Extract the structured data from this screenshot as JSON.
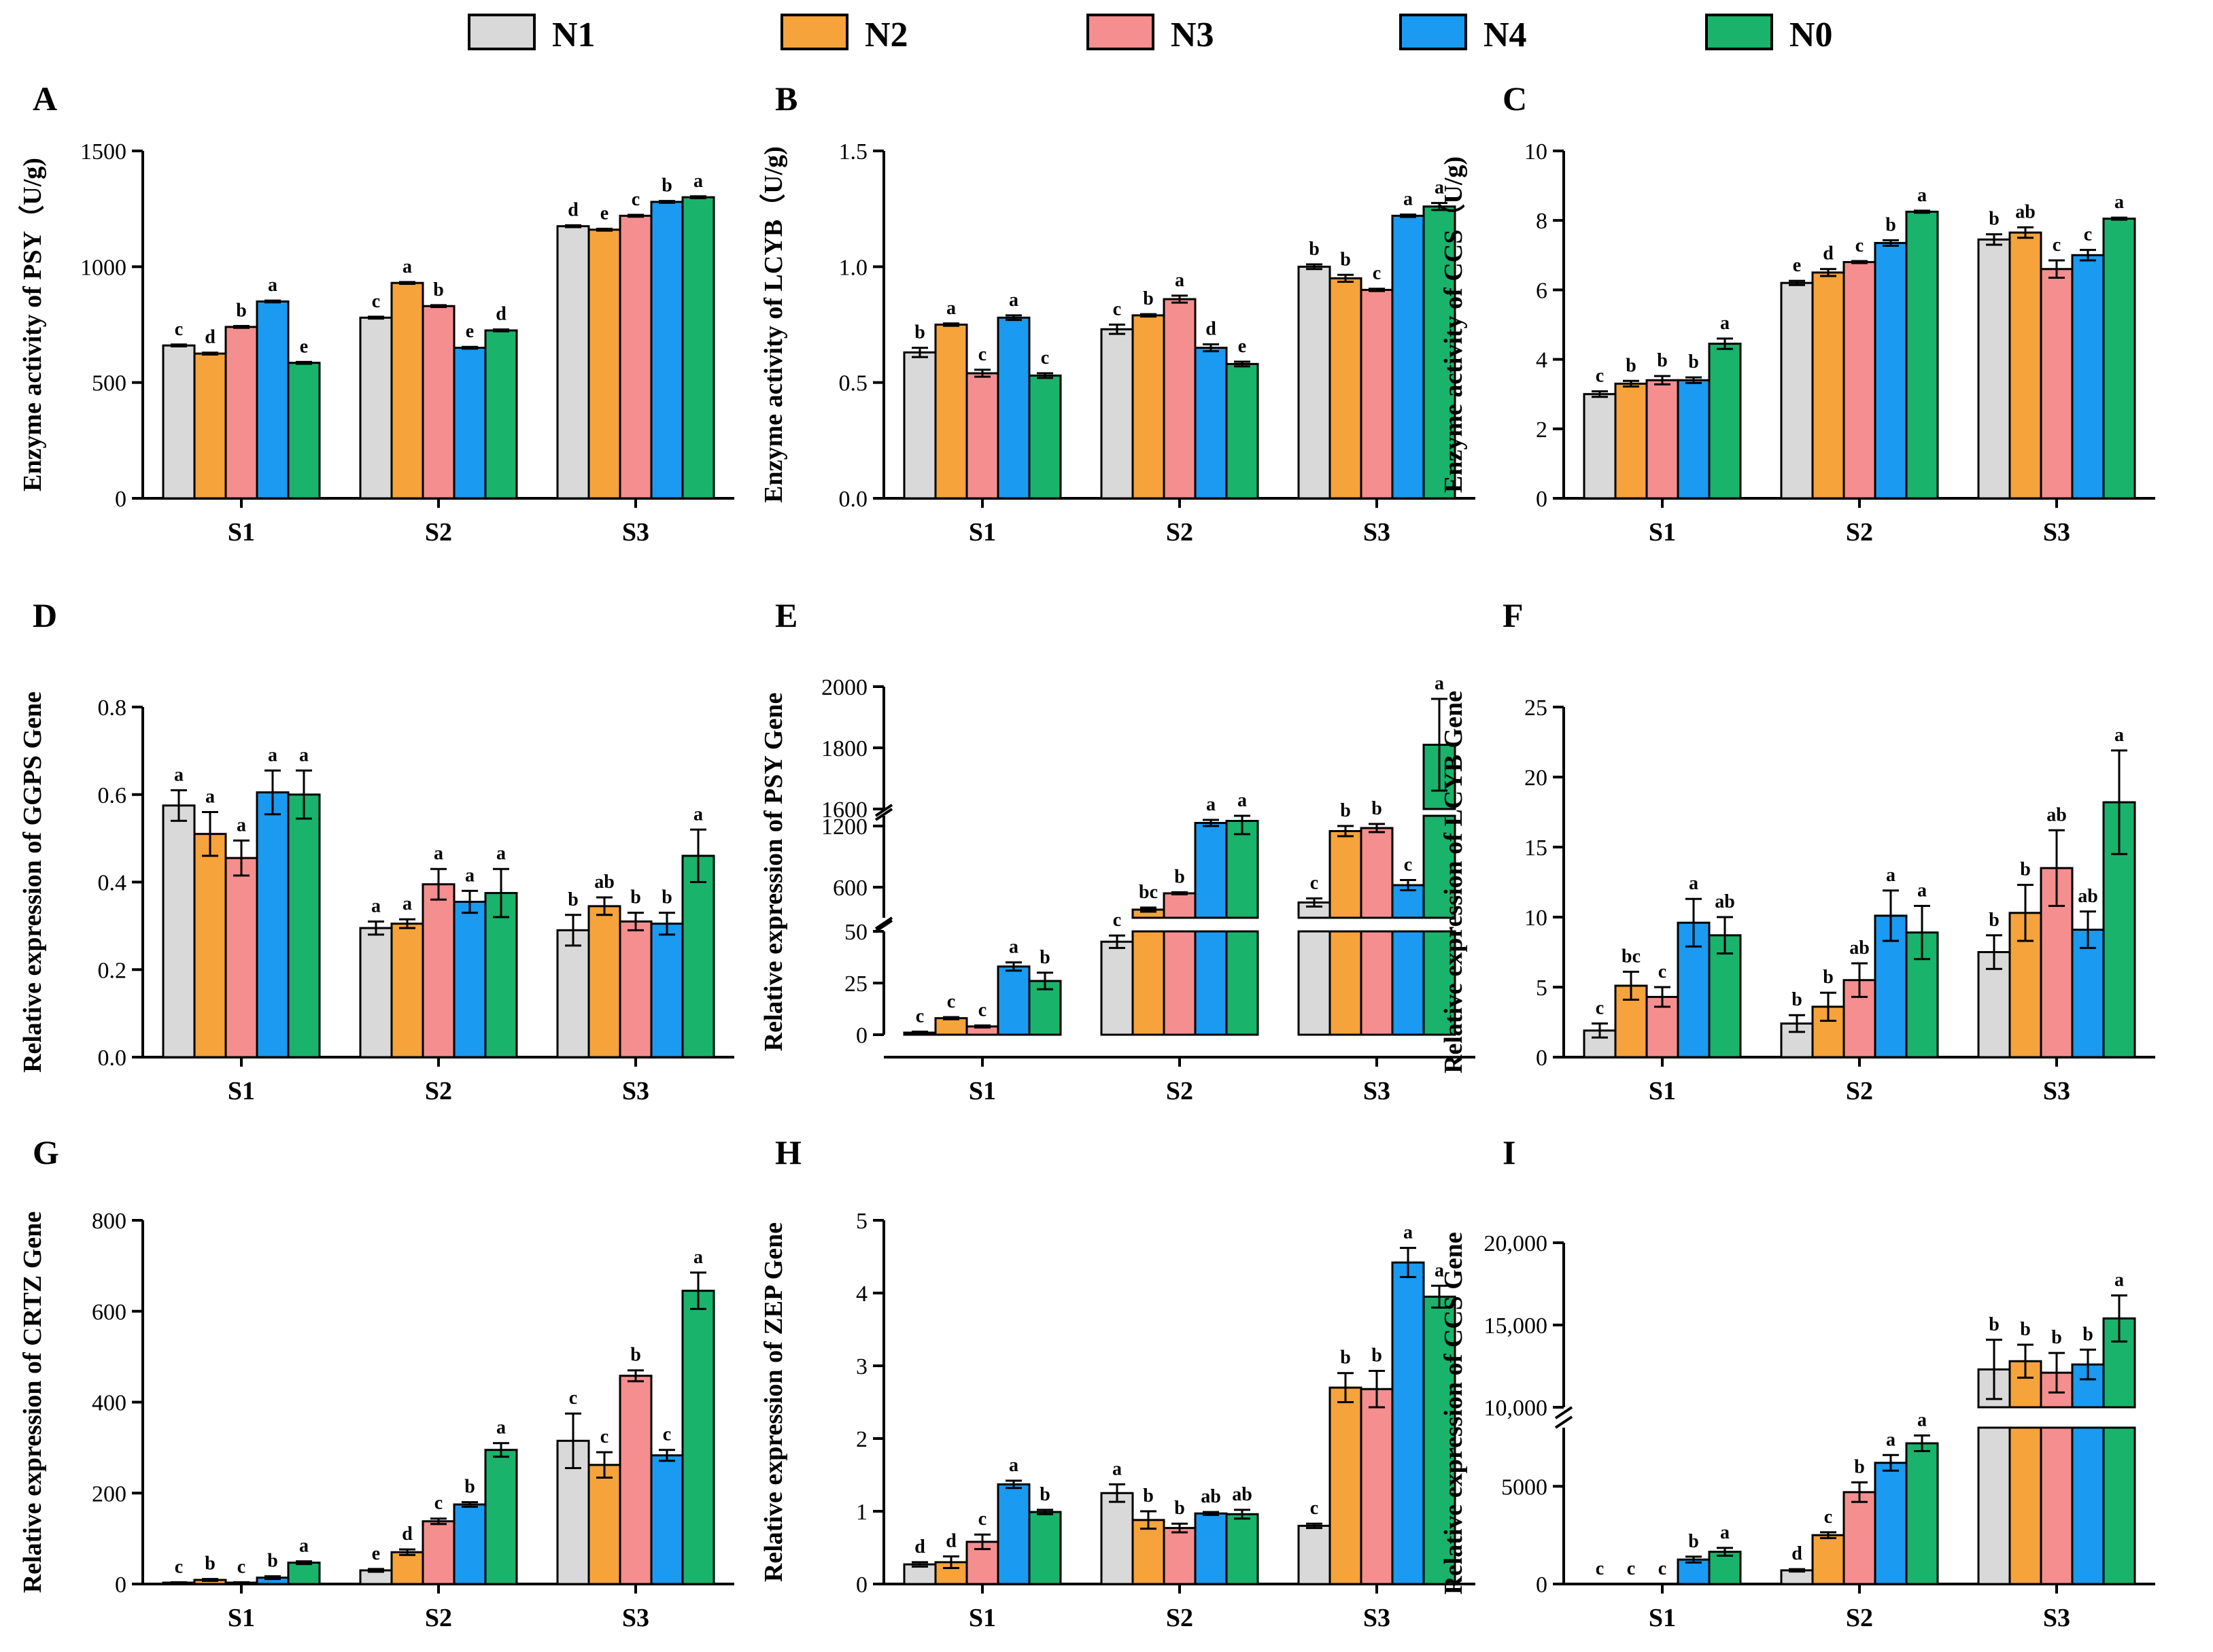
{
  "legend": [
    {
      "name": "N1",
      "color": "#d9d9d9"
    },
    {
      "name": "N2",
      "color": "#f5a33a"
    },
    {
      "name": "N3",
      "color": "#f58f8f"
    },
    {
      "name": "N4",
      "color": "#1a9af0"
    },
    {
      "name": "N0",
      "color": "#1ab36b"
    }
  ],
  "chart_data": [
    {
      "panel": "A",
      "type": "bar",
      "ylabel": "Enzyme activity of PSY（U/g)",
      "categories": [
        "S1",
        "S2",
        "S3"
      ],
      "ylim": [
        0,
        1500
      ],
      "ticks": [
        "0",
        "500",
        "1000",
        "1500"
      ],
      "tick_values": [
        0,
        500,
        1000,
        1500
      ],
      "series": [
        {
          "name": "N1",
          "values": [
            660,
            780,
            1175
          ],
          "errors": [
            4,
            4,
            4
          ],
          "sig": [
            "c",
            "c",
            "d"
          ]
        },
        {
          "name": "N2",
          "values": [
            625,
            930,
            1160
          ],
          "errors": [
            4,
            4,
            4
          ],
          "sig": [
            "d",
            "a",
            "e"
          ]
        },
        {
          "name": "N3",
          "values": [
            740,
            830,
            1220
          ],
          "errors": [
            4,
            4,
            4
          ],
          "sig": [
            "b",
            "b",
            "c"
          ]
        },
        {
          "name": "N4",
          "values": [
            850,
            650,
            1280
          ],
          "errors": [
            4,
            4,
            4
          ],
          "sig": [
            "a",
            "e",
            "b"
          ]
        },
        {
          "name": "N0",
          "values": [
            585,
            725,
            1300
          ],
          "errors": [
            4,
            4,
            4
          ],
          "sig": [
            "e",
            "d",
            "a"
          ]
        }
      ]
    },
    {
      "panel": "B",
      "type": "bar",
      "ylabel": "Enzyme activity of LCYB（U/g)",
      "categories": [
        "S1",
        "S2",
        "S3"
      ],
      "ylim": [
        0,
        1.5
      ],
      "ticks": [
        "0.0",
        "0.5",
        "1.0",
        "1.5"
      ],
      "tick_values": [
        0,
        0.5,
        1.0,
        1.5
      ],
      "series": [
        {
          "name": "N1",
          "values": [
            0.63,
            0.73,
            1.0
          ],
          "errors": [
            0.02,
            0.02,
            0.01
          ],
          "sig": [
            "b",
            "c",
            "b"
          ]
        },
        {
          "name": "N2",
          "values": [
            0.75,
            0.79,
            0.95
          ],
          "errors": [
            0.005,
            0.005,
            0.015
          ],
          "sig": [
            "a",
            "b",
            "b"
          ]
        },
        {
          "name": "N3",
          "values": [
            0.54,
            0.86,
            0.9
          ],
          "errors": [
            0.015,
            0.015,
            0.005
          ],
          "sig": [
            "c",
            "a",
            "c"
          ]
        },
        {
          "name": "N4",
          "values": [
            0.78,
            0.65,
            1.22
          ],
          "errors": [
            0.01,
            0.015,
            0.005
          ],
          "sig": [
            "a",
            "d",
            "a"
          ]
        },
        {
          "name": "N0",
          "values": [
            0.53,
            0.58,
            1.26
          ],
          "errors": [
            0.01,
            0.01,
            0.015
          ],
          "sig": [
            "c",
            "e",
            "a"
          ]
        }
      ]
    },
    {
      "panel": "C",
      "type": "bar",
      "ylabel": "Enzyme activity of CCS（U/g)",
      "categories": [
        "S1",
        "S2",
        "S3"
      ],
      "ylim": [
        0,
        10
      ],
      "ticks": [
        "0",
        "2",
        "4",
        "6",
        "8",
        "10"
      ],
      "tick_values": [
        0,
        2,
        4,
        6,
        8,
        10
      ],
      "series": [
        {
          "name": "N1",
          "values": [
            3.0,
            6.2,
            7.45
          ],
          "errors": [
            0.08,
            0.06,
            0.15
          ],
          "sig": [
            "c",
            "e",
            "b"
          ]
        },
        {
          "name": "N2",
          "values": [
            3.3,
            6.5,
            7.65
          ],
          "errors": [
            0.08,
            0.1,
            0.15
          ],
          "sig": [
            "b",
            "d",
            "ab"
          ]
        },
        {
          "name": "N3",
          "values": [
            3.4,
            6.8,
            6.6
          ],
          "errors": [
            0.12,
            0.03,
            0.25
          ],
          "sig": [
            "b",
            "c",
            "c"
          ]
        },
        {
          "name": "N4",
          "values": [
            3.4,
            7.35,
            7.0
          ],
          "errors": [
            0.08,
            0.08,
            0.15
          ],
          "sig": [
            "b",
            "b",
            "c"
          ]
        },
        {
          "name": "N0",
          "values": [
            4.45,
            8.25,
            8.05
          ],
          "errors": [
            0.15,
            0.03,
            0.03
          ],
          "sig": [
            "a",
            "a",
            "a"
          ]
        }
      ]
    },
    {
      "panel": "D",
      "type": "bar",
      "ylabel": "Relative expression of GGPS Gene",
      "categories": [
        "S1",
        "S2",
        "S3"
      ],
      "ylim": [
        0,
        0.8
      ],
      "ticks": [
        "0.0",
        "0.2",
        "0.4",
        "0.6",
        "0.8"
      ],
      "tick_values": [
        0,
        0.2,
        0.4,
        0.6,
        0.8
      ],
      "series": [
        {
          "name": "N1",
          "values": [
            0.575,
            0.295,
            0.29
          ],
          "errors": [
            0.035,
            0.015,
            0.035
          ],
          "sig": [
            "a",
            "a",
            "b"
          ]
        },
        {
          "name": "N2",
          "values": [
            0.51,
            0.305,
            0.345
          ],
          "errors": [
            0.05,
            0.01,
            0.02
          ],
          "sig": [
            "a",
            "a",
            "ab"
          ]
        },
        {
          "name": "N3",
          "values": [
            0.455,
            0.395,
            0.31
          ],
          "errors": [
            0.04,
            0.035,
            0.02
          ],
          "sig": [
            "a",
            "a",
            "b"
          ]
        },
        {
          "name": "N4",
          "values": [
            0.605,
            0.355,
            0.305
          ],
          "errors": [
            0.05,
            0.025,
            0.025
          ],
          "sig": [
            "a",
            "a",
            "b"
          ]
        },
        {
          "name": "N0",
          "values": [
            0.6,
            0.375,
            0.46
          ],
          "errors": [
            0.055,
            0.055,
            0.06
          ],
          "sig": [
            "a",
            "a",
            "a"
          ]
        }
      ]
    },
    {
      "panel": "E",
      "type": "bar",
      "broken_axis": true,
      "ylabel": "Relative expression of PSY Gene",
      "categories": [
        "S1",
        "S2",
        "S3"
      ],
      "segments": [
        {
          "range": [
            0,
            50
          ],
          "ticks": [
            "0",
            "25",
            "50"
          ],
          "tick_values": [
            0,
            25,
            50
          ]
        },
        {
          "range": [
            300,
            1300
          ],
          "ticks": [
            "600",
            "1200"
          ],
          "tick_values": [
            600,
            1200
          ]
        },
        {
          "range": [
            1600,
            2000
          ],
          "ticks": [
            "1600",
            "1800",
            "2000"
          ],
          "tick_values": [
            1600,
            1800,
            2000
          ]
        }
      ],
      "series": [
        {
          "name": "N1",
          "values": [
            1,
            45,
            450
          ],
          "errors": [
            0.5,
            3,
            40
          ],
          "sig": [
            "c",
            "c",
            "c"
          ]
        },
        {
          "name": "N2",
          "values": [
            8,
            380,
            1150
          ],
          "errors": [
            0.5,
            20,
            50
          ],
          "sig": [
            "c",
            "bc",
            "b"
          ]
        },
        {
          "name": "N3",
          "values": [
            4,
            540,
            1180
          ],
          "errors": [
            0.5,
            10,
            40
          ],
          "sig": [
            "c",
            "b",
            "b"
          ]
        },
        {
          "name": "N4",
          "values": [
            33,
            1230,
            620
          ],
          "errors": [
            2,
            30,
            50
          ],
          "sig": [
            "a",
            "a",
            "c"
          ]
        },
        {
          "name": "N0",
          "values": [
            26,
            1250,
            1810
          ],
          "errors": [
            4,
            130,
            150
          ],
          "sig": [
            "b",
            "a",
            "a"
          ]
        }
      ]
    },
    {
      "panel": "F",
      "type": "bar",
      "ylabel": "Relative expression of LCYB Gene",
      "categories": [
        "S1",
        "S2",
        "S3"
      ],
      "ylim": [
        0,
        25
      ],
      "ticks": [
        "0",
        "5",
        "10",
        "15",
        "20",
        "25"
      ],
      "tick_values": [
        0,
        5,
        10,
        15,
        20,
        25
      ],
      "series": [
        {
          "name": "N1",
          "values": [
            1.9,
            2.4,
            7.5
          ],
          "errors": [
            0.5,
            0.6,
            1.2
          ],
          "sig": [
            "c",
            "b",
            "b"
          ]
        },
        {
          "name": "N2",
          "values": [
            5.1,
            3.6,
            10.3
          ],
          "errors": [
            1.0,
            1.0,
            2.0
          ],
          "sig": [
            "bc",
            "b",
            "b"
          ]
        },
        {
          "name": "N3",
          "values": [
            4.3,
            5.5,
            13.5
          ],
          "errors": [
            0.7,
            1.2,
            2.7
          ],
          "sig": [
            "c",
            "ab",
            "ab"
          ]
        },
        {
          "name": "N4",
          "values": [
            9.6,
            10.1,
            9.1
          ],
          "errors": [
            1.7,
            1.8,
            1.3
          ],
          "sig": [
            "a",
            "a",
            "ab"
          ]
        },
        {
          "name": "N0",
          "values": [
            8.7,
            8.9,
            18.2
          ],
          "errors": [
            1.3,
            1.9,
            3.7
          ],
          "sig": [
            "ab",
            "a",
            "a"
          ]
        }
      ]
    },
    {
      "panel": "G",
      "type": "bar",
      "ylabel": "Relative expression of CRTZ Gene",
      "categories": [
        "S1",
        "S2",
        "S3"
      ],
      "ylim": [
        0,
        800
      ],
      "ticks": [
        "0",
        "200",
        "400",
        "600",
        "800"
      ],
      "tick_values": [
        0,
        200,
        400,
        600,
        800
      ],
      "series": [
        {
          "name": "N1",
          "values": [
            3,
            30,
            315
          ],
          "errors": [
            1,
            3,
            60
          ],
          "sig": [
            "c",
            "e",
            "c"
          ]
        },
        {
          "name": "N2",
          "values": [
            9,
            70,
            262
          ],
          "errors": [
            2,
            6,
            28
          ],
          "sig": [
            "b",
            "d",
            "c"
          ]
        },
        {
          "name": "N3",
          "values": [
            3,
            138,
            458
          ],
          "errors": [
            1,
            6,
            12
          ],
          "sig": [
            "c",
            "c",
            "b"
          ]
        },
        {
          "name": "N4",
          "values": [
            14,
            175,
            283
          ],
          "errors": [
            3,
            5,
            12
          ],
          "sig": [
            "b",
            "b",
            "c"
          ]
        },
        {
          "name": "N0",
          "values": [
            47,
            295,
            645
          ],
          "errors": [
            3,
            15,
            40
          ],
          "sig": [
            "a",
            "a",
            "a"
          ]
        }
      ]
    },
    {
      "panel": "H",
      "type": "bar",
      "ylabel": "Relative expression of ZEP Gene",
      "categories": [
        "S1",
        "S2",
        "S3"
      ],
      "ylim": [
        0,
        5
      ],
      "ticks": [
        "0",
        "1",
        "2",
        "3",
        "4",
        "5"
      ],
      "tick_values": [
        0,
        1,
        2,
        3,
        4,
        5
      ],
      "series": [
        {
          "name": "N1",
          "values": [
            0.27,
            1.25,
            0.8
          ],
          "errors": [
            0.03,
            0.12,
            0.03
          ],
          "sig": [
            "d",
            "a",
            "c"
          ]
        },
        {
          "name": "N2",
          "values": [
            0.3,
            0.88,
            2.7
          ],
          "errors": [
            0.08,
            0.12,
            0.2
          ],
          "sig": [
            "d",
            "b",
            "b"
          ]
        },
        {
          "name": "N3",
          "values": [
            0.58,
            0.77,
            2.68
          ],
          "errors": [
            0.1,
            0.06,
            0.25
          ],
          "sig": [
            "c",
            "b",
            "b"
          ]
        },
        {
          "name": "N4",
          "values": [
            1.37,
            0.97,
            4.42
          ],
          "errors": [
            0.05,
            0.02,
            0.2
          ],
          "sig": [
            "a",
            "ab",
            "a"
          ]
        },
        {
          "name": "N0",
          "values": [
            0.99,
            0.96,
            3.95
          ],
          "errors": [
            0.03,
            0.06,
            0.15
          ],
          "sig": [
            "b",
            "ab",
            "a"
          ]
        }
      ]
    },
    {
      "panel": "I",
      "type": "bar",
      "broken_axis": true,
      "ylabel": "Relative expression of CCS Gene",
      "categories": [
        "S1",
        "S2",
        "S3"
      ],
      "segments": [
        {
          "range": [
            0,
            8000
          ],
          "ticks": [
            "0",
            "5000"
          ],
          "tick_values": [
            0,
            5000
          ]
        },
        {
          "range": [
            10000,
            20000
          ],
          "ticks": [
            "10,000",
            "15,000",
            "20,000"
          ],
          "tick_values": [
            10000,
            15000,
            20000
          ]
        }
      ],
      "series": [
        {
          "name": "N1",
          "values": [
            0,
            700,
            12300
          ],
          "errors": [
            0,
            60,
            1800
          ],
          "sig": [
            "c",
            "d",
            "b"
          ]
        },
        {
          "name": "N2",
          "values": [
            0,
            2500,
            12800
          ],
          "errors": [
            0,
            150,
            1000
          ],
          "sig": [
            "c",
            "c",
            "b"
          ]
        },
        {
          "name": "N3",
          "values": [
            0,
            4700,
            12100
          ],
          "errors": [
            0,
            500,
            1200
          ],
          "sig": [
            "c",
            "b",
            "b"
          ]
        },
        {
          "name": "N4",
          "values": [
            1250,
            6200,
            12600
          ],
          "errors": [
            150,
            400,
            900
          ],
          "sig": [
            "b",
            "a",
            "b"
          ]
        },
        {
          "name": "N0",
          "values": [
            1650,
            7200,
            15400
          ],
          "errors": [
            200,
            400,
            1400
          ],
          "sig": [
            "a",
            "a",
            "a"
          ]
        }
      ]
    }
  ]
}
